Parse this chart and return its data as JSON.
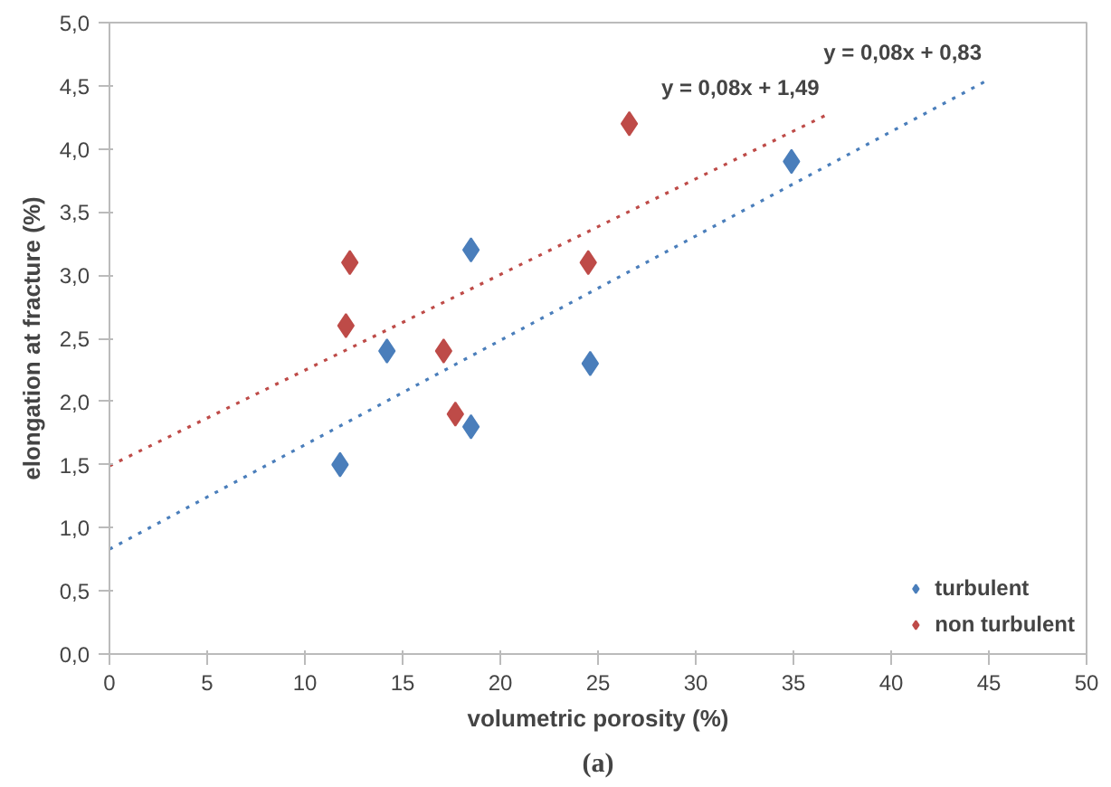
{
  "chart_data": {
    "type": "scatter",
    "xlabel": "volumetric porosity (%)",
    "ylabel": "elongation at fracture (%)",
    "xlim": [
      0,
      50
    ],
    "ylim": [
      0,
      5
    ],
    "xticks": [
      0,
      5,
      10,
      15,
      20,
      25,
      30,
      35,
      40,
      45,
      50
    ],
    "yticks": [
      {
        "value": 0,
        "label": "0,0"
      },
      {
        "value": 0.5,
        "label": "0,5"
      },
      {
        "value": 1,
        "label": "1,0"
      },
      {
        "value": 1.5,
        "label": "1,5"
      },
      {
        "value": 2,
        "label": "2,0"
      },
      {
        "value": 2.5,
        "label": "2,5"
      },
      {
        "value": 3,
        "label": "3,0"
      },
      {
        "value": 3.5,
        "label": "3,5"
      },
      {
        "value": 4,
        "label": "4,0"
      },
      {
        "value": 4.5,
        "label": "4,5"
      },
      {
        "value": 5,
        "label": "5,0"
      }
    ],
    "grid": false,
    "legend": "bottom right",
    "marker": "diamond",
    "series": [
      {
        "name": "turbulent",
        "color": "#4a7ebb",
        "x": [
          11.8,
          14.2,
          18.5,
          18.5,
          24.6,
          34.9
        ],
        "values": [
          1.5,
          2.4,
          3.2,
          1.8,
          2.3,
          3.9
        ]
      },
      {
        "name": "non turbulent",
        "color": "#be4b48",
        "x": [
          12.1,
          12.3,
          17.1,
          17.7,
          24.5,
          26.6
        ],
        "values": [
          2.6,
          3.1,
          2.4,
          1.9,
          3.1,
          4.2
        ]
      },
      {
        "type": "line",
        "line_style": "dotted",
        "marker": "none",
        "color": "#4a7ebb",
        "x": [
          0,
          45
        ],
        "values": [
          0.83,
          4.55
        ]
      },
      {
        "type": "line",
        "line_style": "dotted",
        "marker": "none",
        "color": "#be4b48",
        "x": [
          0,
          36.7
        ],
        "values": [
          1.49,
          4.27
        ]
      }
    ],
    "annotations": [
      {
        "text": "y = 0,08x + 1,49",
        "x": 36.7,
        "y": 4.27
      },
      {
        "text": "y = 0,08x + 0,83",
        "x": 45,
        "y": 4.55
      },
      "(a)"
    ]
  }
}
